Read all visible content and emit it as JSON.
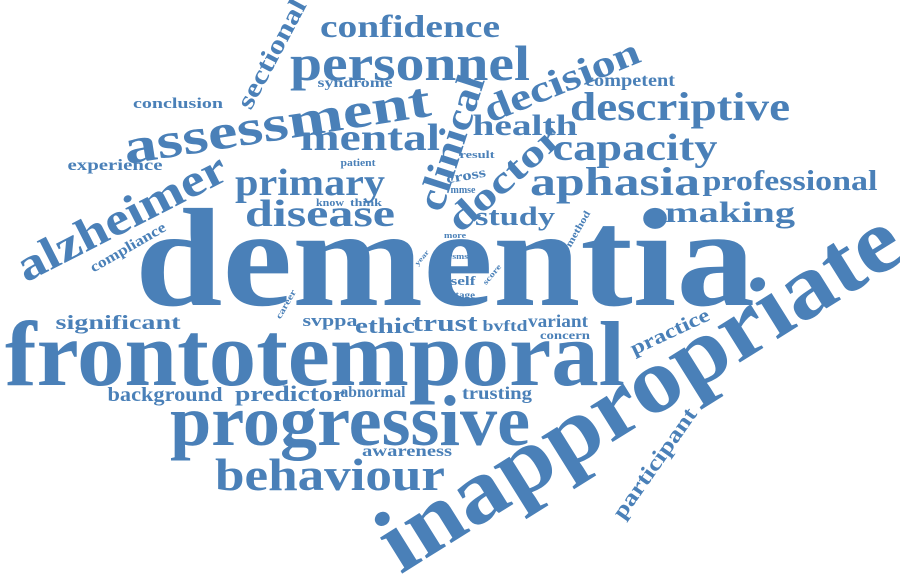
{
  "words": [
    "dementia",
    "inappropriate",
    "frontotemporal",
    "progressive",
    "behaviour",
    "assessment",
    "alzheimer",
    "personnel",
    "confidence",
    "sectional",
    "decision",
    "descriptive",
    "competent",
    "health",
    "capacity",
    "mental",
    "clinical",
    "doctor",
    "primary",
    "aphasia",
    "professional",
    "making",
    "disease",
    "study",
    "conclusion",
    "syndrome",
    "experience",
    "patient",
    "result",
    "cross",
    "mmse",
    "know",
    "think",
    "more",
    "method",
    "compliance",
    "year",
    "rsms",
    "score",
    "self",
    "stage",
    "career",
    "significant",
    "svppa",
    "ethic",
    "trust",
    "bvftd",
    "variant",
    "concern",
    "practice",
    "background",
    "predictor",
    "abnormal",
    "trusting",
    "awareness",
    "participant"
  ]
}
